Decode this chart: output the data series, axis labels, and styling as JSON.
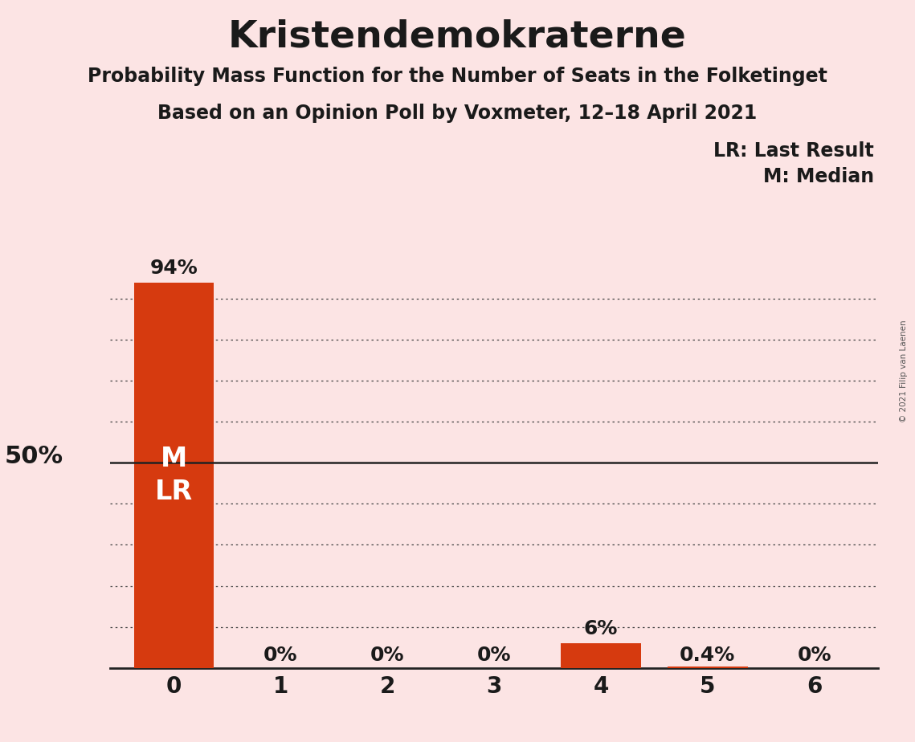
{
  "title": "Kristendemokraterne",
  "subtitle1": "Probability Mass Function for the Number of Seats in the Folketinget",
  "subtitle2": "Based on an Opinion Poll by Voxmeter, 12–18 April 2021",
  "copyright": "© 2021 Filip van Laenen",
  "categories": [
    0,
    1,
    2,
    3,
    4,
    5,
    6
  ],
  "values": [
    0.94,
    0.0,
    0.0,
    0.0,
    0.06,
    0.004,
    0.0
  ],
  "bar_labels": [
    "94%",
    "0%",
    "0%",
    "0%",
    "6%",
    "0.4%",
    "0%"
  ],
  "bar_color": "#d63a0f",
  "background_color": "#fce4e4",
  "text_color": "#1a1a1a",
  "legend_lr": "LR: Last Result",
  "legend_m": "M: Median",
  "ylabel_50": "50%",
  "ylim_max": 1.05,
  "solid_line_level": 0.5,
  "dotted_grid_levels": [
    0.9,
    0.8,
    0.7,
    0.6,
    0.4,
    0.3,
    0.2,
    0.1
  ],
  "title_fontsize": 34,
  "subtitle_fontsize": 17,
  "label_fontsize": 18,
  "tick_fontsize": 20,
  "legend_fontsize": 17,
  "ylabel_fontsize": 22,
  "ml_fontsize": 24
}
